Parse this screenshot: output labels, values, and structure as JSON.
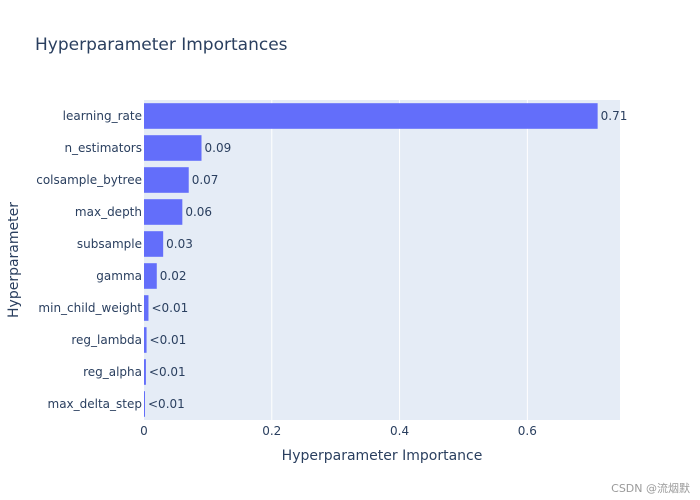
{
  "chart_data": {
    "type": "bar",
    "orientation": "horizontal",
    "title": "Hyperparameter Importances",
    "xlabel": "Hyperparameter Importance",
    "ylabel": "Hyperparameter",
    "categories": [
      "learning_rate",
      "n_estimators",
      "colsample_bytree",
      "max_depth",
      "subsample",
      "gamma",
      "min_child_weight",
      "reg_lambda",
      "reg_alpha",
      "max_delta_step"
    ],
    "values": [
      0.71,
      0.09,
      0.07,
      0.06,
      0.03,
      0.02,
      0.007,
      0.004,
      0.003,
      0.001
    ],
    "data_labels": [
      "0.71",
      "0.09",
      "0.07",
      "0.06",
      "0.03",
      "0.02",
      "<0.01",
      "<0.01",
      "<0.01",
      "<0.01"
    ],
    "xlim": [
      0,
      0.745
    ],
    "x_ticks": [
      0,
      0.2,
      0.4,
      0.6
    ],
    "x_tick_labels": [
      "0",
      "0.2",
      "0.4",
      "0.6"
    ],
    "grid": true,
    "colors": {
      "bar": "#636efa",
      "plot_background": "#e5ecf6",
      "grid": "#ffffff",
      "text": "#2a3f5f"
    }
  },
  "watermark": "CSDN @流烟默"
}
